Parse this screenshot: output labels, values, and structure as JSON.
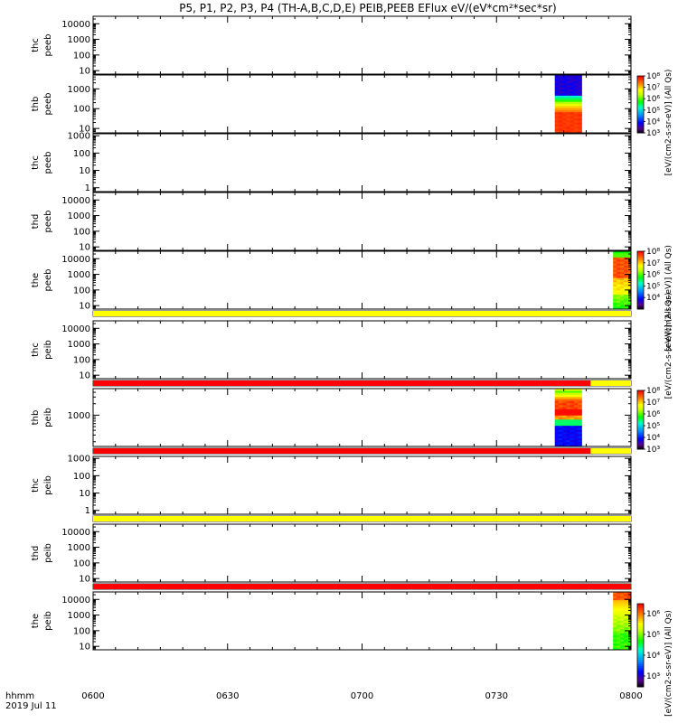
{
  "chart_data": {
    "type": "heatmap",
    "title": "P5, P1, P2, P3, P4 (TH-A,B,C,D,E) PEIB,PEEB EFlux eV/(eV*cm²*sec*sr)",
    "x_axis": {
      "label_top": "hhmm",
      "label_bottom": "2019 Jul 11",
      "ticks": [
        "0600",
        "0630",
        "0700",
        "0730",
        "0800"
      ],
      "range_minutes": [
        0,
        120
      ]
    },
    "panels": [
      {
        "probe": "thc",
        "species": "peeb",
        "yticks": [
          "10000",
          "1000",
          "100",
          "10"
        ],
        "ylim": [
          6,
          30000
        ],
        "colorbar": null,
        "status_bar": null,
        "blocks": []
      },
      {
        "probe": "thb",
        "species": "peeb",
        "yticks": [
          "1000",
          "100",
          "10"
        ],
        "ylim": [
          6,
          5000
        ],
        "colorbar": {
          "label": "[eV/(cm2-s-sr-eV)] (All Qs)",
          "ticks": [
            "10⁸",
            "10⁷",
            "10⁶",
            "10⁵",
            "10⁴",
            "10³"
          ],
          "range": [
            1000,
            100000000
          ]
        },
        "status_bar": null,
        "blocks": [
          {
            "t_start": 103,
            "t_end": 109,
            "profile": "peeb_b"
          }
        ]
      },
      {
        "probe": "thc",
        "species": "peeb",
        "yticks": [
          "1000",
          "100",
          "10",
          "1"
        ],
        "ylim": [
          0.6,
          1300
        ],
        "colorbar": null,
        "status_bar": null,
        "blocks": []
      },
      {
        "probe": "thd",
        "species": "peeb",
        "yticks": [
          "10000",
          "1000",
          "100",
          "10"
        ],
        "ylim": [
          6,
          30000
        ],
        "colorbar": null,
        "status_bar": null,
        "blocks": []
      },
      {
        "probe": "the",
        "species": "peeb",
        "yticks": [
          "10000",
          "1000",
          "100",
          "10"
        ],
        "ylim": [
          6,
          30000
        ],
        "colorbar": {
          "label": "[eV/(cm2-s-sr-eV)] (All Qs)",
          "ticks": [
            "10⁸",
            "10⁷",
            "10⁶",
            "10⁵",
            "10⁴"
          ],
          "range": [
            1000,
            100000000
          ]
        },
        "status_bar": {
          "segments": [
            {
              "t_start": 0,
              "t_end": 120,
              "color": "#ffff00"
            }
          ]
        },
        "blocks": [
          {
            "t_start": 116,
            "t_end": 120,
            "profile": "peeb_e"
          }
        ]
      },
      {
        "probe": "thc",
        "species": "peib",
        "yticks": [
          "10000",
          "1000",
          "100",
          "10"
        ],
        "ylim": [
          6,
          30000
        ],
        "colorbar": {
          "label": "[eV/(cm2-s-sr-eV)] (All Qs)",
          "ticks": [],
          "range": [
            1000,
            100000000
          ]
        },
        "status_bar": {
          "segments": [
            {
              "t_start": 0,
              "t_end": 111,
              "color": "#ff0000"
            },
            {
              "t_start": 111,
              "t_end": 120,
              "color": "#ffff00"
            }
          ]
        },
        "blocks": []
      },
      {
        "probe": "thb",
        "species": "peib",
        "yticks": [
          "1000"
        ],
        "ylim": [
          150,
          5000
        ],
        "colorbar": {
          "label": "",
          "ticks": [
            "10⁸",
            "10⁷",
            "10⁶",
            "10⁵",
            "10⁴",
            "10³"
          ],
          "range": [
            1000,
            100000000
          ]
        },
        "status_bar": {
          "segments": [
            {
              "t_start": 0,
              "t_end": 111,
              "color": "#ff0000"
            },
            {
              "t_start": 111,
              "t_end": 120,
              "color": "#ffff00"
            }
          ]
        },
        "blocks": [
          {
            "t_start": 103,
            "t_end": 109,
            "profile": "peib_b"
          }
        ]
      },
      {
        "probe": "thc",
        "species": "peib",
        "yticks": [
          "1000",
          "100",
          "10",
          "1"
        ],
        "ylim": [
          0.6,
          1300
        ],
        "colorbar": null,
        "status_bar": {
          "segments": [
            {
              "t_start": 0,
              "t_end": 120,
              "color": "#ffff00"
            }
          ]
        },
        "blocks": []
      },
      {
        "probe": "thd",
        "species": "peib",
        "yticks": [
          "10000",
          "1000",
          "100",
          "10"
        ],
        "ylim": [
          6,
          30000
        ],
        "colorbar": {
          "label": "",
          "ticks": [],
          "range": [
            1000,
            100000000
          ]
        },
        "status_bar": {
          "segments": [
            {
              "t_start": 0,
              "t_end": 120,
              "color": "#ff0000"
            }
          ]
        },
        "blocks": []
      },
      {
        "probe": "the",
        "species": "peib",
        "yticks": [
          "10000",
          "1000",
          "100",
          "10"
        ],
        "ylim": [
          6,
          30000
        ],
        "colorbar": {
          "label": "[eV/(cm2-s-sr-eV)] (All Qs)",
          "ticks": [
            "10⁶",
            "10⁵",
            "10⁴",
            "10³"
          ],
          "range": [
            300,
            3000000
          ]
        },
        "status_bar": null,
        "blocks": [
          {
            "t_start": 116,
            "t_end": 120,
            "profile": "peib_e"
          }
        ]
      }
    ],
    "grid": false,
    "colormap": "rainbow"
  }
}
